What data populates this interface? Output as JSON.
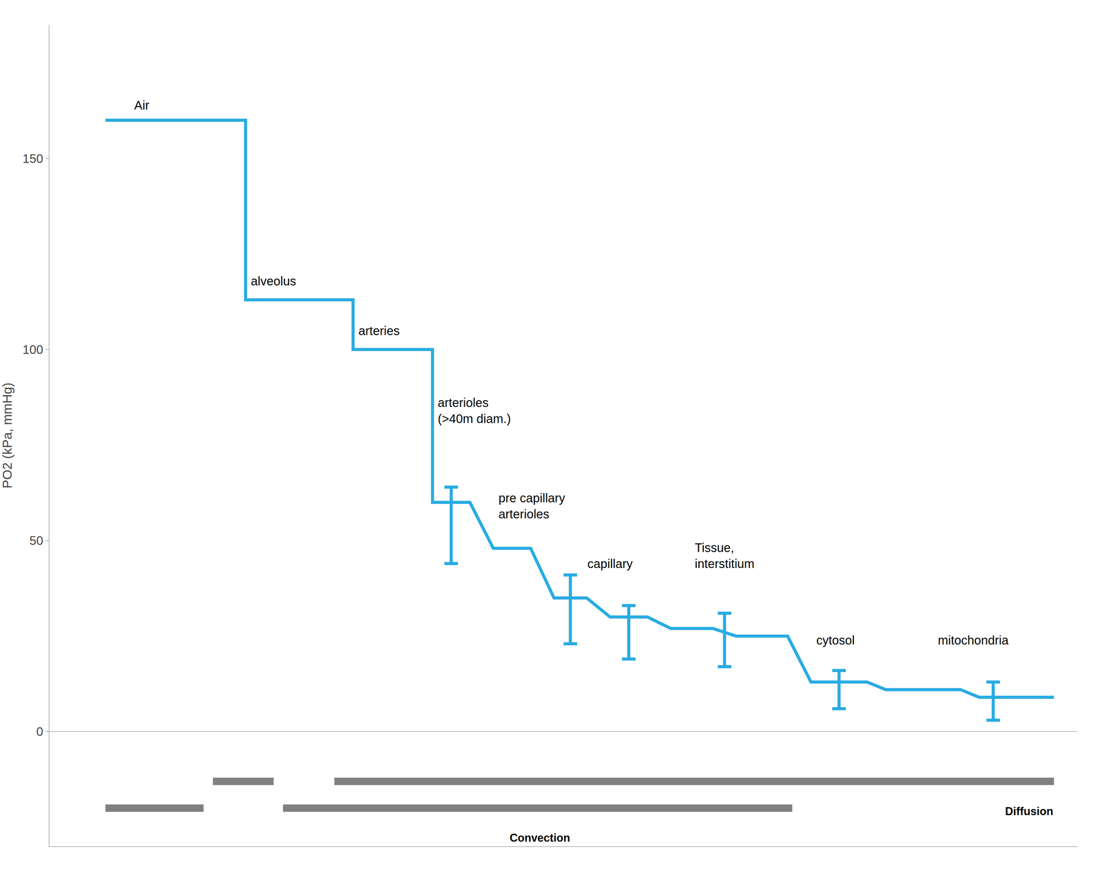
{
  "chart_data": {
    "type": "line",
    "ylabel": "PO2 (kPa, mmHg)",
    "tick_labels": "y",
    "grid": false,
    "xlim": [
      0,
      22
    ],
    "ylim": [
      -30,
      185
    ],
    "yticks": [
      0,
      50,
      100,
      150
    ],
    "series": [
      {
        "type": "line",
        "color": "#29ABE2",
        "x": [
          1.2,
          4.2,
          4.2,
          6.5,
          6.5,
          8.2,
          8.2,
          9.0,
          9.5,
          10.3,
          10.8,
          11.5,
          12.0,
          12.8,
          13.3,
          14.2,
          14.7,
          15.8,
          16.3,
          17.5,
          17.9,
          19.5,
          19.9,
          21.5
        ],
        "values": [
          160,
          160,
          113,
          113,
          100,
          100,
          60,
          60,
          48,
          48,
          35,
          35,
          30,
          30,
          27,
          27,
          25,
          25,
          13,
          13,
          11,
          11,
          9,
          9
        ]
      },
      {
        "type": "errorbar",
        "color": "#29ABE2",
        "x": [
          8.6,
          11.15,
          12.4,
          14.45,
          16.9,
          20.2
        ],
        "values": [
          54,
          32,
          26,
          24,
          11,
          8
        ],
        "errors": [
          10,
          9,
          7,
          7,
          5,
          5
        ]
      }
    ],
    "annotations": [
      {
        "text": "Air",
        "x": 1.8,
        "y": 162
      },
      {
        "text": "alveolus",
        "x": 4.3,
        "y": 116
      },
      {
        "text": "arteries",
        "x": 6.6,
        "y": 103
      },
      {
        "text": "arterioles\n(>40m diam.)",
        "x": 8.3,
        "y": 80
      },
      {
        "text": "pre capillary\narterioles",
        "x": 9.6,
        "y": 55
      },
      {
        "text": "capillary",
        "x": 11.5,
        "y": 42
      },
      {
        "text": "Tissue,\ninterstitium",
        "x": 13.8,
        "y": 42
      },
      {
        "text": "cytosol",
        "x": 16.4,
        "y": 22
      },
      {
        "text": "mitochondria",
        "x": 19.0,
        "y": 22
      }
    ],
    "bands": [
      {
        "text": "Diffusion",
        "color": "#808080",
        "y": -13,
        "spans": [
          [
            3.5,
            4.8
          ],
          [
            6.1,
            21.5
          ]
        ],
        "label_x": 21.5,
        "label_y": -19
      },
      {
        "text": "Convection",
        "color": "#808080",
        "y": -20,
        "spans": [
          [
            1.2,
            3.3
          ],
          [
            5.0,
            15.9
          ]
        ],
        "label_x": 10.5,
        "label_y": -26
      }
    ]
  }
}
